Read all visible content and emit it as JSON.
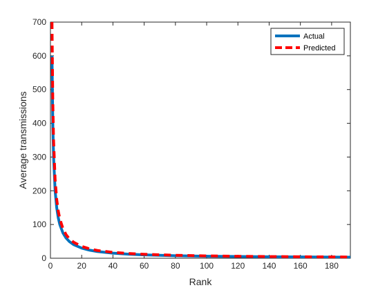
{
  "chart_data": {
    "type": "line",
    "xlabel": "Rank",
    "ylabel": "Average transmissions",
    "xlim": [
      0,
      192
    ],
    "ylim": [
      0,
      700
    ],
    "xticks": [
      0,
      20,
      40,
      60,
      80,
      100,
      120,
      140,
      160,
      180
    ],
    "yticks": [
      0,
      100,
      200,
      300,
      400,
      500,
      600,
      700
    ],
    "grid": false,
    "legend_position": "top-right",
    "series": [
      {
        "name": "Actual",
        "color": "#0072BD",
        "style": "solid",
        "x": [
          1,
          1.5,
          2,
          3,
          4,
          5,
          6,
          8,
          10,
          12,
          15,
          20,
          25,
          30,
          40,
          50,
          60,
          80,
          100,
          120,
          140,
          160,
          180,
          192
        ],
        "y": [
          600,
          400,
          300,
          200,
          150,
          120,
          100,
          75,
          60,
          50,
          40,
          30,
          24,
          20,
          15,
          12,
          10,
          7.5,
          6,
          5,
          4.3,
          3.8,
          3.3,
          3.1
        ]
      },
      {
        "name": "Predicted",
        "color": "#FF0000",
        "style": "dashed",
        "x": [
          1,
          1.5,
          2,
          3,
          4,
          5,
          6,
          8,
          10,
          12,
          15,
          20,
          25,
          30,
          40,
          50,
          60,
          80,
          100,
          120,
          140,
          160,
          180,
          192
        ],
        "y": [
          700,
          466,
          350,
          233,
          175,
          140,
          117,
          88,
          70,
          58,
          47,
          35,
          28,
          23,
          17.5,
          14,
          11.7,
          8.8,
          7,
          5.8,
          5,
          4.4,
          3.9,
          3.6
        ]
      }
    ]
  }
}
